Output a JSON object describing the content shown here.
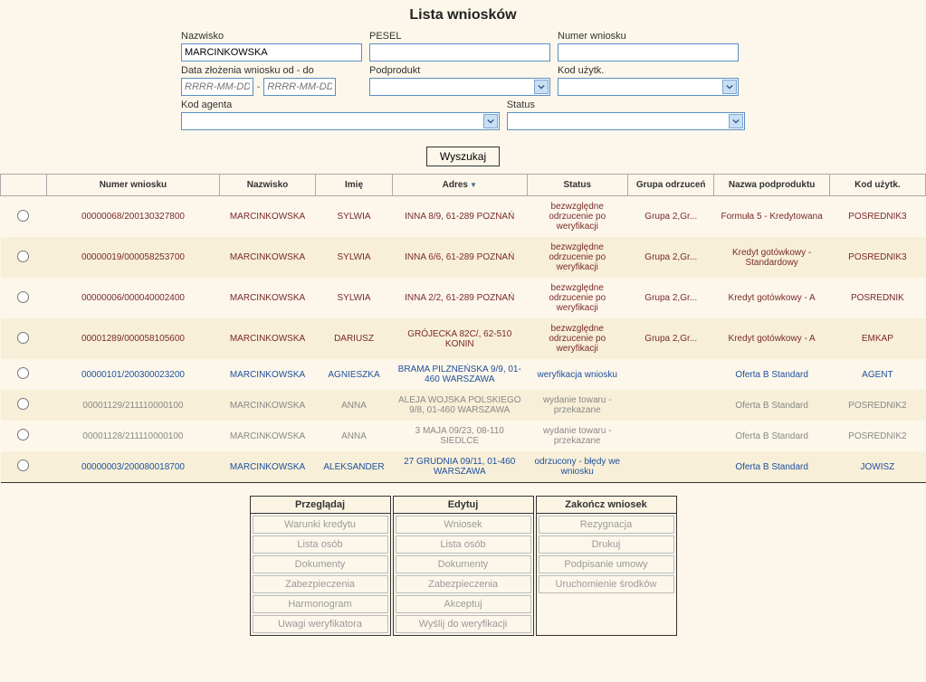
{
  "title": "Lista wniosków",
  "form": {
    "nazwisko": {
      "label": "Nazwisko",
      "value": "MARCINKOWSKA"
    },
    "pesel": {
      "label": "PESEL",
      "value": ""
    },
    "numer_wniosku": {
      "label": "Numer wniosku",
      "value": ""
    },
    "data_od_do": {
      "label": "Data złożenia wniosku od - do",
      "placeholder": "RRRR-MM-DD",
      "sep": "-"
    },
    "podprodukt": {
      "label": "Podprodukt",
      "value": ""
    },
    "kod_uzytk": {
      "label": "Kod użytk.",
      "value": ""
    },
    "kod_agenta": {
      "label": "Kod agenta",
      "value": ""
    },
    "status": {
      "label": "Status",
      "value": ""
    }
  },
  "search_button": "Wyszukaj",
  "table": {
    "columns": [
      "",
      "Numer wniosku",
      "Nazwisko",
      "Imię",
      "Adres",
      "Status",
      "Grupa odrzuceń",
      "Nazwa podproduktu",
      "Kod użytk."
    ],
    "sort_column": "Adres",
    "sort_indicator": "▼",
    "rows": [
      {
        "color": "link-maroon",
        "alt": false,
        "numer": "00000068/200130327800",
        "nazwisko": "MARCINKOWSKA",
        "imie": "SYLWIA",
        "adres": "INNA 8/9, 61-289 POZNAŃ",
        "status": "bezwzględne odrzucenie po weryfikacji",
        "grupa": "Grupa 2,Gr...",
        "nazwa_pod": "Formuła 5 - Kredytowana",
        "kodu": "POSREDNIK3"
      },
      {
        "color": "link-maroon",
        "alt": true,
        "numer": "00000019/000058253700",
        "nazwisko": "MARCINKOWSKA",
        "imie": "SYLWIA",
        "adres": "INNA 6/6, 61-289 POZNAŃ",
        "status": "bezwzględne odrzucenie po weryfikacji",
        "grupa": "Grupa 2,Gr...",
        "nazwa_pod": "Kredyt gotówkowy - Standardowy",
        "kodu": "POSREDNIK3"
      },
      {
        "color": "link-maroon",
        "alt": false,
        "numer": "00000006/000040002400",
        "nazwisko": "MARCINKOWSKA",
        "imie": "SYLWIA",
        "adres": "INNA 2/2, 61-289 POZNAŃ",
        "status": "bezwzględne odrzucenie po weryfikacji",
        "grupa": "Grupa 2,Gr...",
        "nazwa_pod": "Kredyt gotówkowy - A",
        "kodu": "POSREDNIK"
      },
      {
        "color": "link-maroon",
        "alt": true,
        "numer": "00001289/000058105600",
        "nazwisko": "MARCINKOWSKA",
        "imie": "DARIUSZ",
        "adres": "GRÓJECKA 82C/, 62-510 KONIN",
        "status": "bezwzględne odrzucenie po weryfikacji",
        "grupa": "Grupa 2,Gr...",
        "nazwa_pod": "Kredyt gotówkowy - A",
        "kodu": "EMKAP"
      },
      {
        "color": "link-blue",
        "alt": false,
        "numer": "00000101/200300023200",
        "nazwisko": "MARCINKOWSKA",
        "imie": "AGNIESZKA",
        "adres": "BRAMA PILZNEŃSKA 9/9, 01-460 WARSZAWA",
        "status": "weryfikacja wniosku",
        "grupa": "",
        "nazwa_pod": "Oferta B Standard",
        "kodu": "AGENT"
      },
      {
        "color": "text-gray",
        "alt": true,
        "numer": "00001129/211110000100",
        "nazwisko": "MARCINKOWSKA",
        "imie": "ANNA",
        "adres": "ALEJA WOJSKA POLSKIEGO 9/8, 01-460 WARSZAWA",
        "status": "wydanie towaru - przekazane",
        "grupa": "",
        "nazwa_pod": "Oferta B Standard",
        "kodu": "POSREDNIK2"
      },
      {
        "color": "text-gray",
        "alt": false,
        "numer": "00001128/211110000100",
        "nazwisko": "MARCINKOWSKA",
        "imie": "ANNA",
        "adres": "3 MAJA 09/23, 08-110 SIEDLCE",
        "status": "wydanie towaru - przekazane",
        "grupa": "",
        "nazwa_pod": "Oferta B Standard",
        "kodu": "POSREDNIK2"
      },
      {
        "color": "link-blue",
        "alt": true,
        "numer": "00000003/200080018700",
        "nazwisko": "MARCINKOWSKA",
        "imie": "ALEKSANDER",
        "adres": "27 GRUDNIA 09/11, 01-460 WARSZAWA",
        "status": "odrzucony - błędy we wniosku",
        "grupa": "",
        "nazwa_pod": "Oferta B Standard",
        "kodu": "JOWISZ"
      }
    ]
  },
  "actions": {
    "przegladaj": {
      "header": "Przeglądaj",
      "items": [
        "Warunki kredytu",
        "Lista osób",
        "Dokumenty",
        "Zabezpieczenia",
        "Harmonogram",
        "Uwagi weryfikatora"
      ]
    },
    "edytuj": {
      "header": "Edytuj",
      "items": [
        "Wniosek",
        "Lista osób",
        "Dokumenty",
        "Zabezpieczenia",
        "Akceptuj",
        "Wyślij do weryfikacji"
      ]
    },
    "zakoncz": {
      "header": "Zakończ wniosek",
      "items": [
        "Rezygnacja",
        "Drukuj",
        "Podpisanie umowy",
        "Uruchomienie środków"
      ]
    }
  },
  "colors": {
    "background": "#fcf7ea",
    "input_border": "#5a8fc4",
    "link_maroon": "#7a2a2a",
    "link_blue": "#1e4f9e",
    "text_gray": "#888888",
    "alt_row": "#f7efd8"
  }
}
